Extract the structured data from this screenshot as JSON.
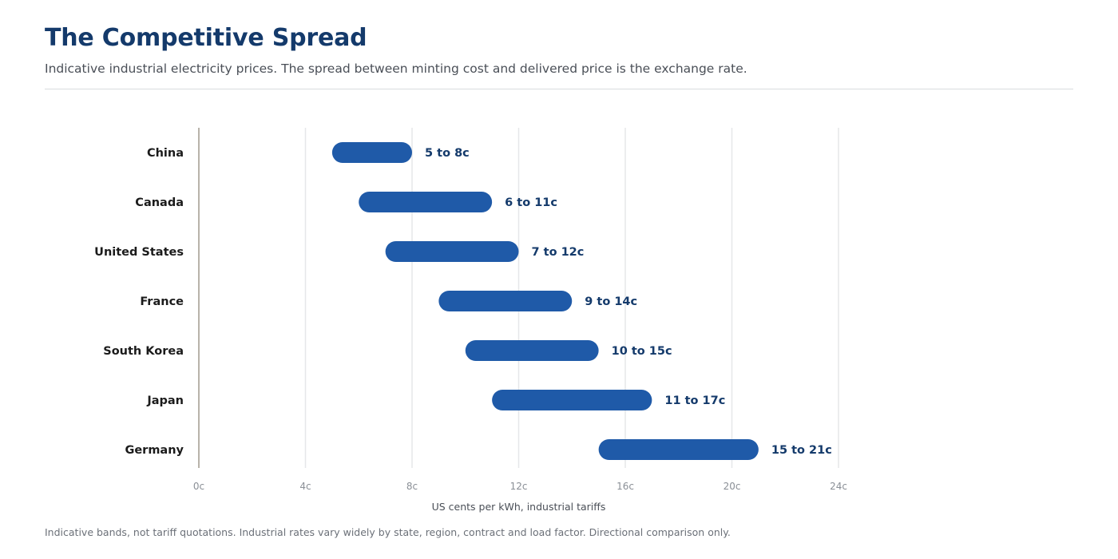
{
  "header": {
    "title": "The Competitive Spread",
    "subtitle": "Indicative industrial electricity prices. The spread between minting cost and delivered price is the exchange rate."
  },
  "footnote": "Indicative bands, not tariff quotations. Industrial rates vary widely by state, region, contract and load factor. Directional comparison only.",
  "colors": {
    "bar": "#1f5aa8",
    "value_label": "#143a6b",
    "category_label": "#1b1b1b",
    "grid": "#e6e7e9",
    "axis": "#b8b3aa",
    "tick_label": "#8a8f96"
  },
  "chart_data": {
    "type": "bar",
    "orientation": "horizontal",
    "style": "floating-range",
    "categories": [
      "China",
      "Canada",
      "United States",
      "France",
      "South Korea",
      "Japan",
      "Germany"
    ],
    "series": [
      {
        "low": [
          5,
          6,
          7,
          9,
          10,
          11,
          15
        ],
        "high": [
          8,
          11,
          12,
          14,
          15,
          17,
          21
        ],
        "labels": [
          "5 to 8c",
          "6 to 11c",
          "7 to 12c",
          "9 to 14c",
          "10 to 15c",
          "11 to 17c",
          "15 to 21c"
        ]
      }
    ],
    "xlim": [
      0,
      24
    ],
    "xticks": [
      0,
      4,
      8,
      12,
      16,
      20,
      24
    ],
    "xtick_labels": [
      "0c",
      "4c",
      "8c",
      "12c",
      "16c",
      "20c",
      "24c"
    ],
    "xlabel": "US cents per kWh, industrial tariffs",
    "grid": "vertical"
  }
}
